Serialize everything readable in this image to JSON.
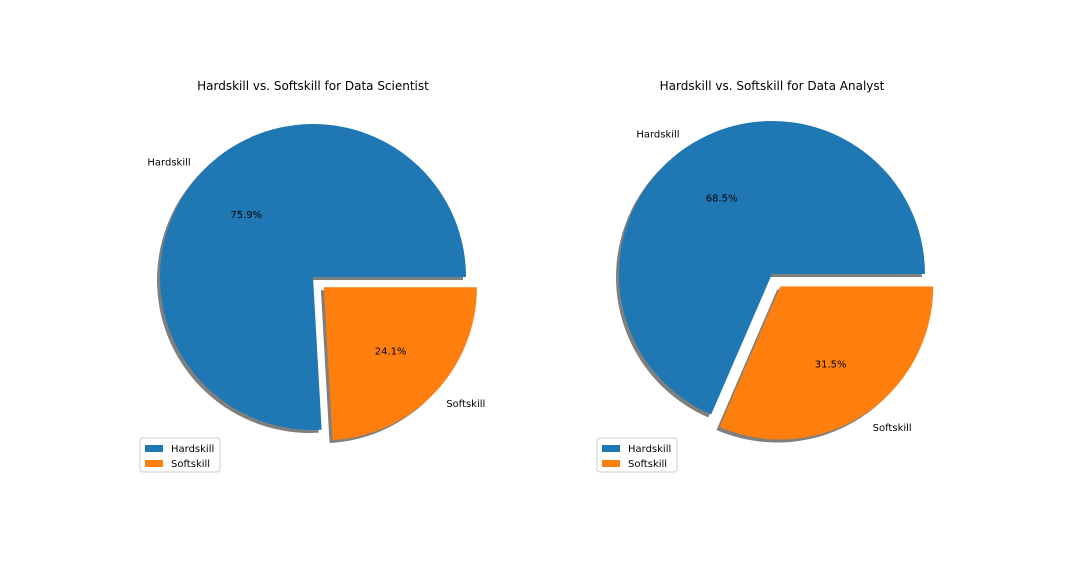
{
  "chart_data": [
    {
      "type": "pie",
      "title": "Hardskill vs. Softskill for Data Scientist",
      "categories": [
        "Hardskill",
        "Softskill"
      ],
      "values": [
        75.9,
        24.1
      ],
      "value_labels": [
        "75.9%",
        "24.1%"
      ],
      "exploded": [
        "Softskill"
      ],
      "shadow": true,
      "legend": {
        "entries": [
          "Hardskill",
          "Softskill"
        ],
        "placement": "lower-left"
      },
      "colors": [
        "#1f77b4",
        "#ff7f0e"
      ]
    },
    {
      "type": "pie",
      "title": "Hardskill vs. Softskill for Data Analyst",
      "categories": [
        "Hardskill",
        "Softskill"
      ],
      "values": [
        68.5,
        31.5
      ],
      "value_labels": [
        "68.5%",
        "31.5%"
      ],
      "exploded": [
        "Softskill"
      ],
      "shadow": true,
      "legend": {
        "entries": [
          "Hardskill",
          "Softskill"
        ],
        "placement": "lower-left"
      },
      "colors": [
        "#1f77b4",
        "#ff7f0e"
      ]
    }
  ]
}
